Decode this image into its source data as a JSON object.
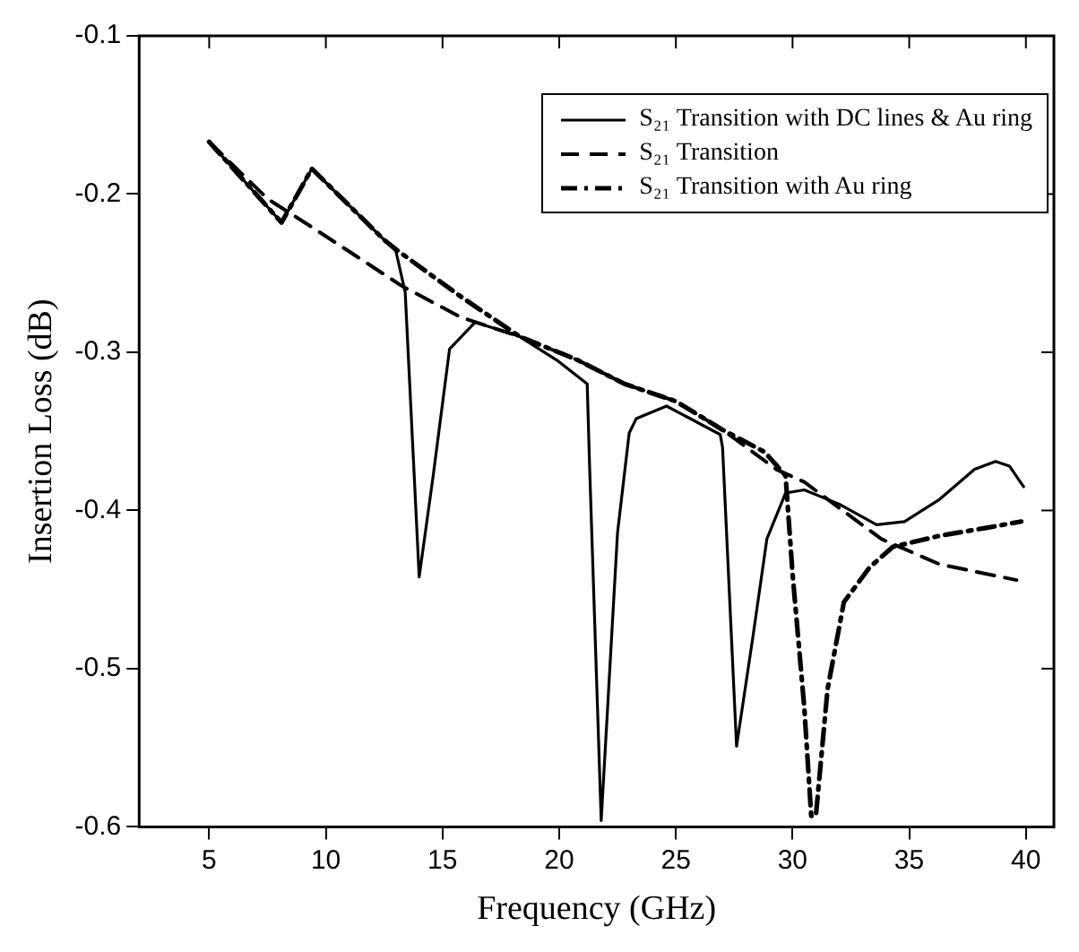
{
  "chart_data": {
    "type": "line",
    "xlabel": "Frequency (GHz)",
    "ylabel": "Insertion Loss (dB)",
    "xlim": [
      2,
      41.2
    ],
    "ylim": [
      -0.6,
      -0.1
    ],
    "xticks": [
      5,
      10,
      15,
      20,
      25,
      30,
      35,
      40
    ],
    "yticks": [
      -0.6,
      -0.5,
      -0.4,
      -0.3,
      -0.2,
      -0.1
    ],
    "grid": false,
    "legend": "top right",
    "marker": "none",
    "series": [
      {
        "name": "S₂₁ Transition with DC lines & Au ring",
        "color": "#000000",
        "line_style": "solid",
        "x": [
          5,
          8.1,
          9.4,
          12.5,
          13.0,
          13.4,
          14.0,
          14.6,
          15.3,
          16.4,
          18.3,
          19.9,
          21.2,
          21.3,
          21.8,
          22.5,
          23.0,
          23.3,
          24.6,
          26.9,
          27.0,
          27.6,
          28.3,
          28.9,
          29.7,
          30.5,
          32.0,
          33.6,
          34.8,
          36.3,
          37.8,
          38.7,
          39.3,
          39.9
        ],
        "values": [
          -0.167,
          -0.218,
          -0.184,
          -0.229,
          -0.236,
          -0.262,
          -0.442,
          -0.378,
          -0.298,
          -0.281,
          -0.29,
          -0.305,
          -0.32,
          -0.371,
          -0.596,
          -0.414,
          -0.351,
          -0.342,
          -0.334,
          -0.352,
          -0.36,
          -0.549,
          -0.48,
          -0.418,
          -0.389,
          -0.387,
          -0.396,
          -0.409,
          -0.407,
          -0.393,
          -0.374,
          -0.369,
          -0.372,
          -0.385
        ]
      },
      {
        "name": "S₂₁ Transition",
        "color": "#000000",
        "line_style": "dashed",
        "x": [
          5,
          7.5,
          9.2,
          13.25,
          15.8,
          18.3,
          20.8,
          22.8,
          25.0,
          27.0,
          29.3,
          30.5,
          33.8,
          36.3,
          39.6
        ],
        "values": [
          -0.167,
          -0.203,
          -0.219,
          -0.258,
          -0.278,
          -0.29,
          -0.305,
          -0.32,
          -0.331,
          -0.349,
          -0.374,
          -0.382,
          -0.418,
          -0.434,
          -0.444
        ]
      },
      {
        "name": "S₂₁ Transition with Au ring",
        "color": "#000000",
        "line_style": "dashdot",
        "x": [
          5,
          8.1,
          9.4,
          12.5,
          13.1,
          15.8,
          18.3,
          20.8,
          22.8,
          25.0,
          27.0,
          28.8,
          29.7,
          30.0,
          30.5,
          30.8,
          31.0,
          31.5,
          32.2,
          33.3,
          34.3,
          36.3,
          38.3,
          39.8
        ],
        "values": [
          -0.167,
          -0.218,
          -0.184,
          -0.229,
          -0.236,
          -0.265,
          -0.29,
          -0.305,
          -0.32,
          -0.331,
          -0.349,
          -0.363,
          -0.378,
          -0.44,
          -0.524,
          -0.593,
          -0.593,
          -0.513,
          -0.458,
          -0.436,
          -0.423,
          -0.416,
          -0.411,
          -0.407
        ]
      }
    ]
  }
}
